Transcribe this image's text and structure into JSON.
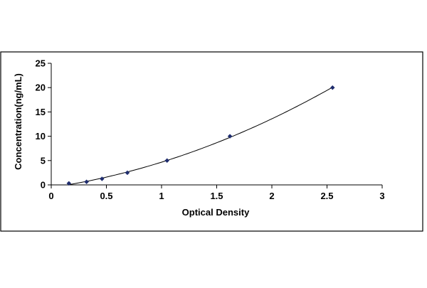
{
  "chart_data": {
    "type": "scatter",
    "title": "",
    "xlabel": "Optical Density",
    "ylabel": "Concentration(ng/mL)",
    "xlim": [
      0,
      3
    ],
    "ylim": [
      0,
      25
    ],
    "x_ticks": [
      0,
      0.5,
      1,
      1.5,
      2,
      2.5,
      3
    ],
    "y_ticks": [
      0,
      5,
      10,
      15,
      20,
      25
    ],
    "x_tick_labels": [
      "0",
      "0.5",
      "1",
      "1.5",
      "2",
      "2.5",
      "3"
    ],
    "y_tick_labels": [
      "0",
      "5",
      "10",
      "15",
      "20",
      "25"
    ],
    "grid": false,
    "legend": false,
    "marker_color": "#1f2d6e",
    "line_color": "#000000",
    "series": [
      {
        "x": [
          0.16,
          0.32,
          0.46,
          0.69,
          1.05,
          1.62,
          2.55
        ],
        "y": [
          0.31,
          0.63,
          1.25,
          2.5,
          5,
          10,
          20
        ]
      }
    ]
  }
}
